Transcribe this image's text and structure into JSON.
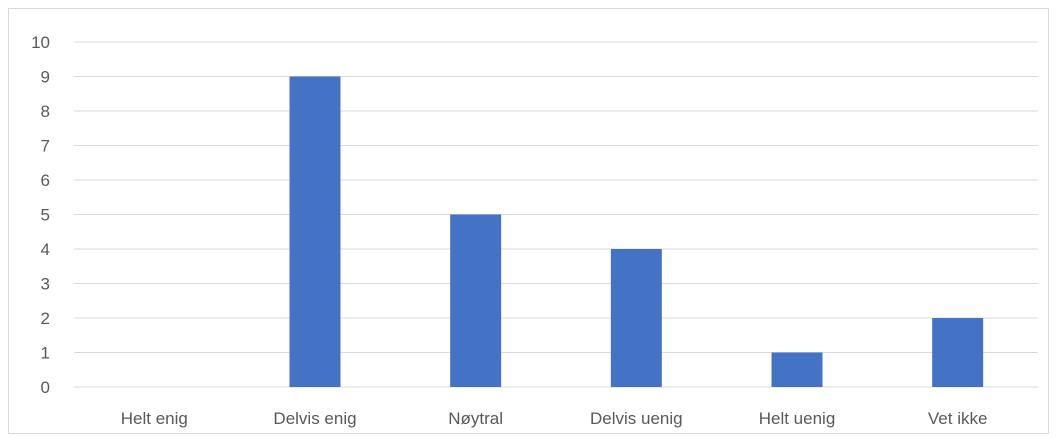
{
  "chart_data": {
    "type": "bar",
    "categories": [
      "Helt enig",
      "Delvis enig",
      "Nøytral",
      "Delvis uenig",
      "Helt uenig",
      "Vet ikke"
    ],
    "values": [
      0,
      9,
      5,
      4,
      1,
      2
    ],
    "ylim": [
      0,
      10
    ],
    "yticks": [
      "0",
      "1",
      "2",
      "3",
      "4",
      "5",
      "6",
      "7",
      "8",
      "9",
      "10"
    ],
    "grid": true,
    "legend": "none",
    "bar_color": "#4472c4",
    "grid_color": "#d9d9d9",
    "text_color": "#595959"
  }
}
